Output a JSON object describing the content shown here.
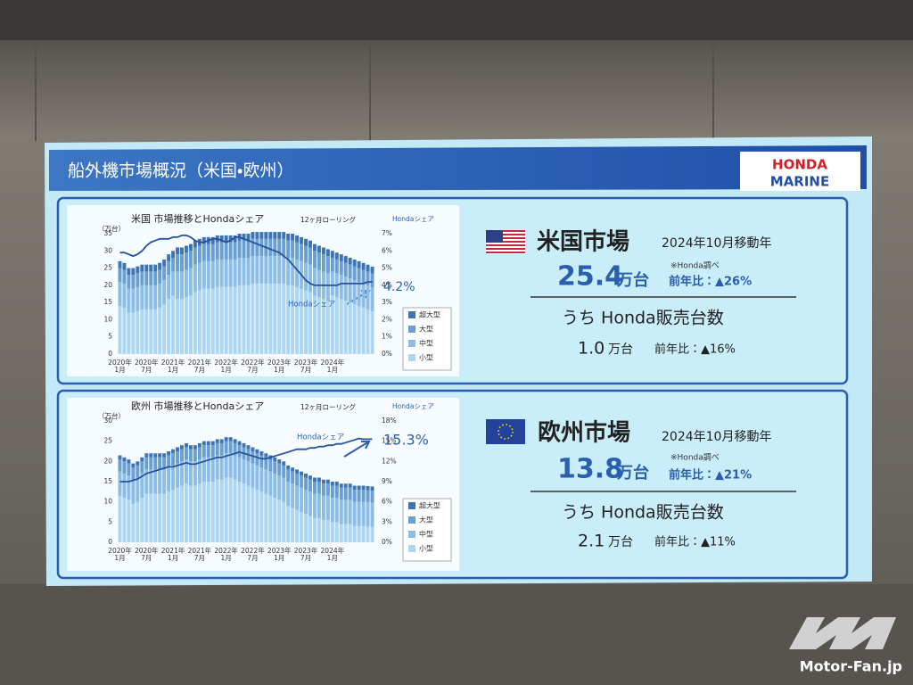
{
  "slide": {
    "title": "船外機市場概況（米国・欧州）",
    "logo_top": "HONDA",
    "logo_bottom": "MARINE"
  },
  "chart_data": [
    {
      "type": "bar",
      "stacked": true,
      "title": "米国 市場推移とHondaシェア",
      "subtitle": "12ヶ月ローリング",
      "y_label": "（万台）",
      "y2_label": "Hondaシェア",
      "categories": [
        "2020年1月",
        null,
        null,
        null,
        null,
        null,
        "2020年7月",
        null,
        null,
        null,
        null,
        null,
        "2021年1月",
        null,
        null,
        null,
        null,
        null,
        "2021年7月",
        null,
        null,
        null,
        null,
        null,
        "2022年1月",
        null,
        null,
        null,
        null,
        null,
        "2022年7月",
        null,
        null,
        null,
        null,
        null,
        "2023年1月",
        null,
        null,
        null,
        null,
        null,
        "2023年7月",
        null,
        null,
        null,
        null,
        null,
        "2024年1月",
        null,
        null,
        null,
        null,
        null,
        null,
        null,
        null,
        null
      ],
      "series": [
        {
          "name": "超大型",
          "color": "#3f74b3",
          "values": [
            2,
            2,
            2,
            2,
            2,
            2,
            2,
            2,
            2,
            2,
            2,
            2,
            2,
            2,
            2,
            2,
            2,
            2,
            2,
            2,
            2,
            2,
            2,
            2,
            2,
            2,
            2,
            2,
            2,
            2,
            2,
            2,
            2,
            2,
            2,
            2,
            2,
            2,
            2,
            2,
            2,
            2,
            2,
            2,
            2,
            2,
            2,
            2,
            2,
            2,
            2,
            2,
            2,
            2,
            2,
            2,
            2,
            2
          ]
        },
        {
          "name": "大型",
          "color": "#6a9fd2",
          "values": [
            4,
            4,
            4,
            4,
            4,
            4,
            4,
            4,
            4,
            4,
            4,
            4,
            4,
            5,
            5,
            5,
            5,
            5,
            5,
            5,
            5,
            5,
            5,
            5,
            5,
            5,
            5,
            5,
            5,
            5,
            5,
            5,
            5,
            5,
            5,
            5,
            5,
            5,
            5,
            5,
            5,
            5,
            5,
            5,
            5,
            5,
            5,
            5,
            4,
            4,
            4,
            4,
            4,
            4,
            4,
            4,
            4,
            4
          ]
        },
        {
          "name": "中型",
          "color": "#8cbde6",
          "values": [
            7,
            7,
            7,
            7,
            7,
            7,
            7,
            7,
            7,
            7,
            7,
            7,
            7,
            8,
            8,
            8,
            8,
            8,
            8,
            8,
            8,
            8,
            8,
            8,
            8,
            8,
            8,
            8,
            8,
            8,
            8,
            8,
            8,
            8,
            8,
            8,
            8,
            8,
            8,
            8,
            8,
            8,
            8,
            8,
            8,
            8,
            8,
            8,
            7,
            7,
            7,
            7,
            7,
            7,
            7,
            7,
            7,
            7
          ]
        },
        {
          "name": "小型",
          "color": "#acd6f2",
          "values": [
            14,
            13.5,
            12,
            12,
            12.5,
            13,
            13,
            13,
            13,
            13.5,
            14.5,
            16,
            17,
            16,
            16,
            16.5,
            17,
            18,
            18.5,
            19,
            19,
            19,
            19.5,
            19.5,
            19.5,
            19.5,
            19.5,
            20,
            20,
            20,
            20.5,
            20.5,
            20.5,
            20.5,
            20.5,
            20.5,
            20.5,
            20.5,
            20,
            20,
            19.5,
            19,
            18.5,
            18,
            17,
            16.5,
            16,
            15.5,
            17,
            16.5,
            16,
            15.5,
            15,
            14.5,
            14,
            13.5,
            13,
            12.4
          ]
        },
        {
          "name": "Hondaシェア",
          "type": "line",
          "axis": "y2",
          "color": "#27519c",
          "end_label": "4.2%",
          "values": [
            5.9,
            5.9,
            5.8,
            5.7,
            5.8,
            6.0,
            6.3,
            6.5,
            6.6,
            6.7,
            6.7,
            6.7,
            6.8,
            6.8,
            6.9,
            6.9,
            6.8,
            6.6,
            6.5,
            6.5,
            6.6,
            6.7,
            6.7,
            6.6,
            6.5,
            6.6,
            6.8,
            6.8,
            6.7,
            6.6,
            6.5,
            6.4,
            6.3,
            6.2,
            6.1,
            6.0,
            5.9,
            5.7,
            5.5,
            5.2,
            4.9,
            4.6,
            4.3,
            4.1,
            4.0,
            4.0,
            4.0,
            4.0,
            4.0,
            4.0,
            4.1,
            4.1,
            4.1,
            4.1,
            4.1,
            4.1,
            4.2,
            4.2
          ]
        }
      ],
      "ylim": [
        0,
        35
      ],
      "yticks": [
        0,
        5,
        10,
        15,
        20,
        25,
        30,
        35
      ],
      "y2lim": [
        0,
        7
      ],
      "y2ticks": [
        {
          "value": 0,
          "label": "0%"
        },
        {
          "value": 1,
          "label": "1%"
        },
        {
          "value": 2,
          "label": "2%"
        },
        {
          "value": 3,
          "label": "3%"
        },
        {
          "value": 4,
          "label": "4%"
        },
        {
          "value": 5,
          "label": "5%"
        },
        {
          "value": 6,
          "label": "6%"
        },
        {
          "value": 7,
          "label": "7%"
        }
      ],
      "grid": false
    },
    {
      "type": "bar",
      "stacked": true,
      "title": "欧州 市場推移とHondaシェア",
      "subtitle": "12ヶ月ローリング",
      "y_label": "（万台）",
      "y2_label": "Hondaシェア",
      "categories": [
        "2020年1月",
        null,
        null,
        null,
        null,
        null,
        "2020年7月",
        null,
        null,
        null,
        null,
        null,
        "2021年1月",
        null,
        null,
        null,
        null,
        null,
        "2021年7月",
        null,
        null,
        null,
        null,
        null,
        "2022年1月",
        null,
        null,
        null,
        null,
        null,
        "2022年7月",
        null,
        null,
        null,
        null,
        null,
        "2023年1月",
        null,
        null,
        null,
        null,
        null,
        "2023年7月",
        null,
        null,
        null,
        null,
        null,
        "2024年1月",
        null,
        null,
        null,
        null,
        null,
        null,
        null,
        null,
        null
      ],
      "series": [
        {
          "name": "超大型",
          "color": "#3f74b3",
          "values": [
            1,
            1,
            1,
            1,
            1,
            1,
            1,
            1,
            1,
            1,
            1,
            1,
            1,
            1,
            1,
            1,
            1,
            1,
            1,
            1,
            1,
            1,
            1,
            1,
            1,
            1,
            1,
            1,
            1,
            1,
            1,
            1,
            1,
            1,
            1,
            1,
            1,
            1,
            1,
            1,
            1,
            1,
            1,
            1,
            1,
            1,
            1,
            1,
            1,
            1,
            1,
            1,
            1,
            1,
            1,
            1,
            1,
            1
          ]
        },
        {
          "name": "大型",
          "color": "#6a9fd2",
          "values": [
            3,
            3,
            3,
            3,
            3,
            3,
            3,
            3,
            3,
            3,
            3,
            3,
            3,
            3,
            3,
            3,
            3,
            3,
            3,
            3,
            3,
            3,
            3,
            3,
            3,
            3,
            3,
            3,
            3,
            3,
            3,
            3,
            3,
            3,
            3,
            3,
            3,
            3,
            3,
            3,
            3,
            3,
            3,
            3,
            3,
            3,
            3,
            3,
            3,
            3,
            3,
            3,
            3,
            3,
            3,
            3,
            3,
            3
          ]
        },
        {
          "name": "中型",
          "color": "#8cbde6",
          "values": [
            6,
            6,
            6,
            6,
            6,
            6,
            6,
            6,
            6,
            6,
            6,
            6,
            6,
            6,
            6,
            6,
            6,
            6,
            6,
            6,
            6,
            6,
            6,
            6,
            6,
            6,
            6,
            6,
            6,
            6,
            6,
            6,
            6,
            6,
            6,
            6,
            6,
            6,
            6,
            6,
            6,
            6,
            6,
            6,
            6,
            6,
            6,
            6,
            6,
            6,
            6,
            6,
            6,
            6,
            6,
            6,
            6,
            6
          ]
        },
        {
          "name": "小型",
          "color": "#acd6f2",
          "values": [
            11.5,
            11,
            10.5,
            9.5,
            10,
            11,
            12,
            12,
            12,
            12,
            12,
            12.5,
            13,
            13.5,
            14,
            14.5,
            14,
            14,
            14.5,
            15,
            15,
            15,
            15.5,
            15.5,
            16,
            16,
            15.5,
            15,
            14.5,
            14,
            13.5,
            13,
            12.5,
            12,
            11.5,
            11,
            10.5,
            10,
            9,
            8.5,
            8,
            7.5,
            7,
            6.5,
            6,
            6,
            5.5,
            5.5,
            5,
            5,
            4.5,
            4.5,
            4.5,
            4,
            4,
            4,
            3.9,
            3.8
          ]
        },
        {
          "name": "Hondaシェア",
          "type": "line",
          "axis": "y2",
          "color": "#27519c",
          "end_label": "15.3%",
          "values": [
            9.0,
            9.0,
            9.0,
            9.2,
            9.4,
            9.8,
            10.2,
            10.4,
            10.6,
            10.8,
            11.0,
            11.2,
            11.2,
            11.4,
            11.6,
            11.8,
            11.6,
            11.6,
            11.8,
            12.0,
            12.2,
            12.4,
            12.6,
            12.6,
            12.8,
            13.0,
            13.2,
            13.4,
            13.2,
            13.0,
            12.8,
            12.6,
            12.4,
            12.4,
            12.6,
            12.8,
            13.0,
            13.2,
            13.4,
            13.6,
            13.8,
            13.8,
            13.8,
            14.0,
            14.0,
            14.2,
            14.2,
            14.4,
            14.4,
            14.6,
            14.6,
            14.8,
            15.0,
            15.2,
            15.4,
            15.3,
            15.3,
            15.3
          ]
        }
      ],
      "ylim": [
        0,
        30
      ],
      "yticks": [
        0,
        5,
        10,
        15,
        20,
        25,
        30
      ],
      "y2lim": [
        0,
        18
      ],
      "y2ticks": [
        {
          "value": 0,
          "label": "0%"
        },
        {
          "value": 3,
          "label": "3%"
        },
        {
          "value": 6,
          "label": "6%"
        },
        {
          "value": 9,
          "label": "9%"
        },
        {
          "value": 12,
          "label": "12%"
        },
        {
          "value": 15,
          "label": "15%"
        },
        {
          "value": 18,
          "label": "18%"
        }
      ],
      "grid": false
    }
  ],
  "us_panel": {
    "market": "米国市場",
    "period": "2024年10月移動年",
    "total": "25.4",
    "unit": "万台",
    "source": "※Honda調べ",
    "yoy": "前年比：▲26%",
    "honda_label": "うち Honda販売台数",
    "honda_units": "1.0",
    "honda_unit": "万台",
    "honda_yoy": "前年比：▲16%"
  },
  "eu_panel": {
    "market": "欧州市場",
    "period": "2024年10月移動年",
    "total": "13.8",
    "unit": "万台",
    "source": "※Honda調べ",
    "yoy": "前年比：▲21%",
    "honda_label": "うち Honda販売台数",
    "honda_units": "2.1",
    "honda_unit": "万台",
    "honda_yoy": "前年比：▲11%"
  },
  "watermark": "Motor-Fan.jp"
}
